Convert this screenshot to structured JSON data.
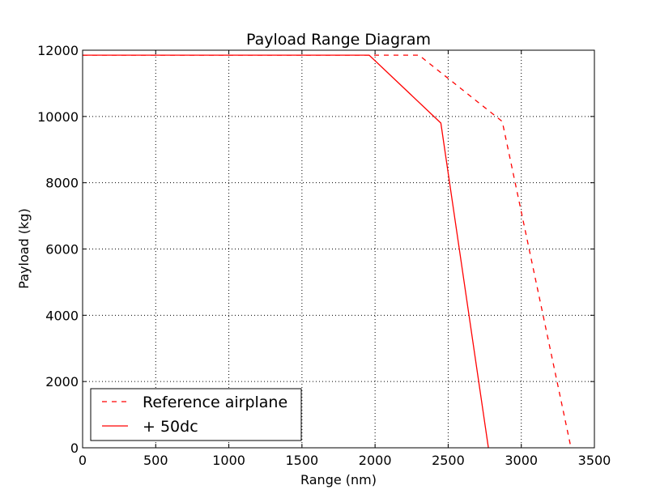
{
  "chart_data": {
    "type": "line",
    "title": "Payload Range Diagram",
    "xlabel": "Range (nm)",
    "ylabel": "Payload (kg)",
    "xlim": [
      0,
      3500
    ],
    "ylim": [
      0,
      12000
    ],
    "xticks": [
      0,
      500,
      1000,
      1500,
      2000,
      2500,
      3000,
      3500
    ],
    "yticks": [
      0,
      2000,
      4000,
      6000,
      8000,
      10000,
      12000
    ],
    "grid": true,
    "legend_position": "lower-left",
    "series": [
      {
        "name": "Reference airplane",
        "color": "#ff0000",
        "style": "dashed",
        "points": [
          [
            0,
            11850
          ],
          [
            2300,
            11850
          ],
          [
            2870,
            9850
          ],
          [
            3340,
            0
          ]
        ]
      },
      {
        "name": "+ 50dc",
        "color": "#ff0000",
        "style": "solid",
        "points": [
          [
            0,
            11850
          ],
          [
            1960,
            11850
          ],
          [
            2450,
            9800
          ],
          [
            2775,
            0
          ]
        ]
      }
    ]
  }
}
